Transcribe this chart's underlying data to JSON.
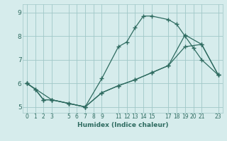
{
  "xlabel": "Humidex (Indice chaleur)",
  "background_color": "#d6ecec",
  "grid_color": "#a0c8c8",
  "line_color": "#2e6b60",
  "xlim": [
    -0.5,
    23.5
  ],
  "ylim": [
    4.75,
    9.35
  ],
  "xticks": [
    0,
    1,
    2,
    3,
    5,
    6,
    7,
    8,
    9,
    11,
    12,
    13,
    14,
    15,
    17,
    18,
    19,
    20,
    21,
    23
  ],
  "yticks": [
    5,
    6,
    7,
    8,
    9
  ],
  "line1_x": [
    0,
    1,
    2,
    3,
    5,
    7,
    9,
    11,
    12,
    13,
    14,
    15,
    17,
    18,
    19,
    20,
    21,
    23
  ],
  "line1_y": [
    6.0,
    5.75,
    5.3,
    5.3,
    5.15,
    5.0,
    6.2,
    7.55,
    7.75,
    8.35,
    8.85,
    8.85,
    8.7,
    8.5,
    8.0,
    7.5,
    7.0,
    6.35
  ],
  "line2_x": [
    0,
    1,
    2,
    3,
    5,
    7,
    9,
    11,
    13,
    15,
    17,
    19,
    21,
    23
  ],
  "line2_y": [
    6.0,
    5.75,
    5.3,
    5.3,
    5.15,
    5.0,
    5.6,
    5.9,
    6.15,
    6.45,
    6.75,
    7.55,
    7.65,
    6.35
  ],
  "line3_x": [
    0,
    3,
    5,
    7,
    9,
    11,
    13,
    15,
    17,
    19,
    21,
    23
  ],
  "line3_y": [
    6.0,
    5.3,
    5.15,
    5.0,
    5.6,
    5.9,
    6.15,
    6.45,
    6.75,
    8.05,
    7.65,
    6.35
  ]
}
